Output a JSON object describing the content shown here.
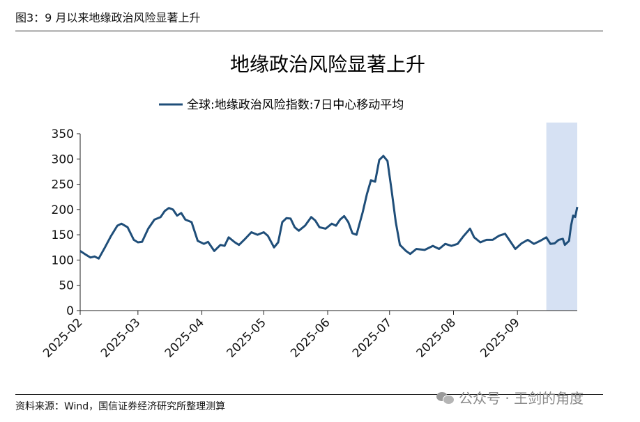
{
  "figure_label": "图3：9 月以来地缘政治风险显著上升",
  "source": "资料来源：Wind，国信证券经济研究所整理测算",
  "watermark": "公众号 · 王剑的角度",
  "chart_data": {
    "type": "line",
    "title": "地缘政治风险显著上升",
    "ylim": [
      0,
      350
    ],
    "y_ticks": [
      0,
      50,
      100,
      150,
      200,
      250,
      300,
      350
    ],
    "x_ticks": [
      "2025-02",
      "2025-03",
      "2025-04",
      "2025-05",
      "2025-06",
      "2025-07",
      "2025-08",
      "2025-09"
    ],
    "x_range": [
      "2025-02-01",
      "2025-09-30"
    ],
    "highlight_range": [
      "2025-09-15",
      "2025-09-30"
    ],
    "highlight_color": "#d6e1f3",
    "grid": false,
    "legend_position": "top-center",
    "series": [
      {
        "name": "全球:地缘政治风险指数:7日中心移动平均",
        "color": "#1f4e79",
        "points": [
          [
            "2025-02-01",
            118
          ],
          [
            "2025-02-04",
            110
          ],
          [
            "2025-02-06",
            105
          ],
          [
            "2025-02-08",
            107
          ],
          [
            "2025-02-10",
            103
          ],
          [
            "2025-02-13",
            125
          ],
          [
            "2025-02-16",
            148
          ],
          [
            "2025-02-19",
            168
          ],
          [
            "2025-02-21",
            172
          ],
          [
            "2025-02-24",
            165
          ],
          [
            "2025-02-27",
            140
          ],
          [
            "2025-03-01",
            135
          ],
          [
            "2025-03-03",
            136
          ],
          [
            "2025-03-06",
            162
          ],
          [
            "2025-03-09",
            180
          ],
          [
            "2025-03-12",
            185
          ],
          [
            "2025-03-14",
            197
          ],
          [
            "2025-03-16",
            203
          ],
          [
            "2025-03-18",
            200
          ],
          [
            "2025-03-20",
            188
          ],
          [
            "2025-03-22",
            193
          ],
          [
            "2025-03-24",
            180
          ],
          [
            "2025-03-27",
            175
          ],
          [
            "2025-03-30",
            138
          ],
          [
            "2025-04-02",
            132
          ],
          [
            "2025-04-04",
            136
          ],
          [
            "2025-04-07",
            118
          ],
          [
            "2025-04-10",
            130
          ],
          [
            "2025-04-12",
            128
          ],
          [
            "2025-04-14",
            145
          ],
          [
            "2025-04-17",
            135
          ],
          [
            "2025-04-19",
            130
          ],
          [
            "2025-04-22",
            142
          ],
          [
            "2025-04-25",
            155
          ],
          [
            "2025-04-28",
            150
          ],
          [
            "2025-05-01",
            155
          ],
          [
            "2025-05-03",
            148
          ],
          [
            "2025-05-06",
            125
          ],
          [
            "2025-05-08",
            135
          ],
          [
            "2025-05-10",
            175
          ],
          [
            "2025-05-12",
            183
          ],
          [
            "2025-05-14",
            182
          ],
          [
            "2025-05-16",
            165
          ],
          [
            "2025-05-18",
            158
          ],
          [
            "2025-05-21",
            168
          ],
          [
            "2025-05-24",
            185
          ],
          [
            "2025-05-26",
            178
          ],
          [
            "2025-05-28",
            165
          ],
          [
            "2025-05-31",
            162
          ],
          [
            "2025-06-03",
            172
          ],
          [
            "2025-06-05",
            168
          ],
          [
            "2025-06-07",
            180
          ],
          [
            "2025-06-09",
            187
          ],
          [
            "2025-06-11",
            175
          ],
          [
            "2025-06-13",
            153
          ],
          [
            "2025-06-15",
            150
          ],
          [
            "2025-06-18",
            195
          ],
          [
            "2025-06-20",
            230
          ],
          [
            "2025-06-22",
            258
          ],
          [
            "2025-06-24",
            255
          ],
          [
            "2025-06-26",
            298
          ],
          [
            "2025-06-28",
            306
          ],
          [
            "2025-06-30",
            296
          ],
          [
            "2025-07-02",
            238
          ],
          [
            "2025-07-04",
            175
          ],
          [
            "2025-07-06",
            130
          ],
          [
            "2025-07-09",
            118
          ],
          [
            "2025-07-11",
            112
          ],
          [
            "2025-07-14",
            122
          ],
          [
            "2025-07-18",
            120
          ],
          [
            "2025-07-22",
            128
          ],
          [
            "2025-07-25",
            122
          ],
          [
            "2025-07-28",
            132
          ],
          [
            "2025-07-31",
            128
          ],
          [
            "2025-08-03",
            132
          ],
          [
            "2025-08-06",
            148
          ],
          [
            "2025-08-09",
            162
          ],
          [
            "2025-08-11",
            145
          ],
          [
            "2025-08-14",
            135
          ],
          [
            "2025-08-17",
            140
          ],
          [
            "2025-08-20",
            140
          ],
          [
            "2025-08-23",
            148
          ],
          [
            "2025-08-26",
            152
          ],
          [
            "2025-08-28",
            140
          ],
          [
            "2025-08-31",
            122
          ],
          [
            "2025-09-03",
            133
          ],
          [
            "2025-09-06",
            140
          ],
          [
            "2025-09-09",
            132
          ],
          [
            "2025-09-12",
            138
          ],
          [
            "2025-09-15",
            145
          ],
          [
            "2025-09-17",
            132
          ],
          [
            "2025-09-19",
            133
          ],
          [
            "2025-09-21",
            140
          ],
          [
            "2025-09-23",
            142
          ],
          [
            "2025-09-24",
            130
          ],
          [
            "2025-09-26",
            138
          ],
          [
            "2025-09-27",
            168
          ],
          [
            "2025-09-28",
            188
          ],
          [
            "2025-09-29",
            185
          ],
          [
            "2025-09-30",
            205
          ]
        ]
      }
    ]
  }
}
